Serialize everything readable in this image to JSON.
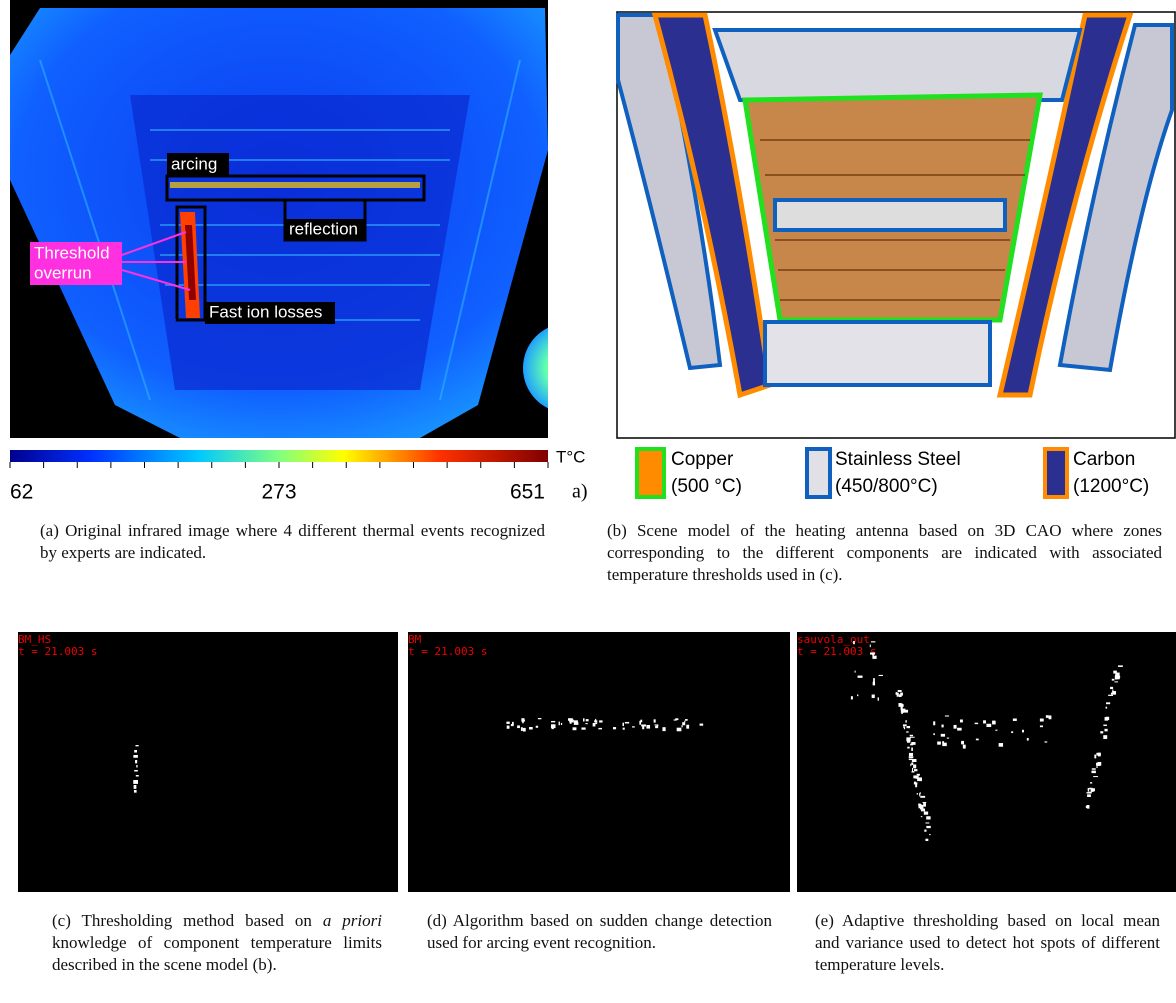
{
  "panel_a": {
    "annotations": {
      "arcing": "arcing",
      "reflection": "reflection",
      "threshold": [
        "Threshold",
        "overrun"
      ],
      "fast_ion": "Fast ion losses"
    },
    "colorbar": {
      "unit": "T°C",
      "ticks": [
        62,
        273,
        651
      ]
    },
    "stray_label": "a)",
    "caption": "(a) Original infrared image where 4 different thermal events recognized by experts are indicated."
  },
  "panel_b": {
    "legend": [
      {
        "name": "Copper",
        "threshold": "(500 °C)"
      },
      {
        "name": "Stainless Steel",
        "threshold": "(450/800°C)"
      },
      {
        "name": "Carbon",
        "threshold": "(1200°C)"
      }
    ],
    "caption": "(b) Scene model of the heating antenna based on 3D CAO where zones corresponding to the different components are indicated with associated temperature thresholds used in (c)."
  },
  "panel_c": {
    "overlay": [
      "BM_HS",
      "t = 21.003 s"
    ],
    "caption": {
      "lead": "(c) Thresholding method based on",
      "emphasis": "a priori",
      "rest": "knowledge of component temperature limits described in the scene model (b)."
    }
  },
  "panel_d": {
    "overlay": [
      "BM",
      "t = 21.003 s"
    ],
    "caption": "(d) Algorithm based on sudden change detection used for arcing event recognition."
  },
  "panel_e": {
    "overlay": [
      "sauvola_out",
      "t = 21.003 s"
    ],
    "caption": "(e) Adaptive thresholding based on local mean and variance used to detect hot spots of different temperature levels."
  }
}
